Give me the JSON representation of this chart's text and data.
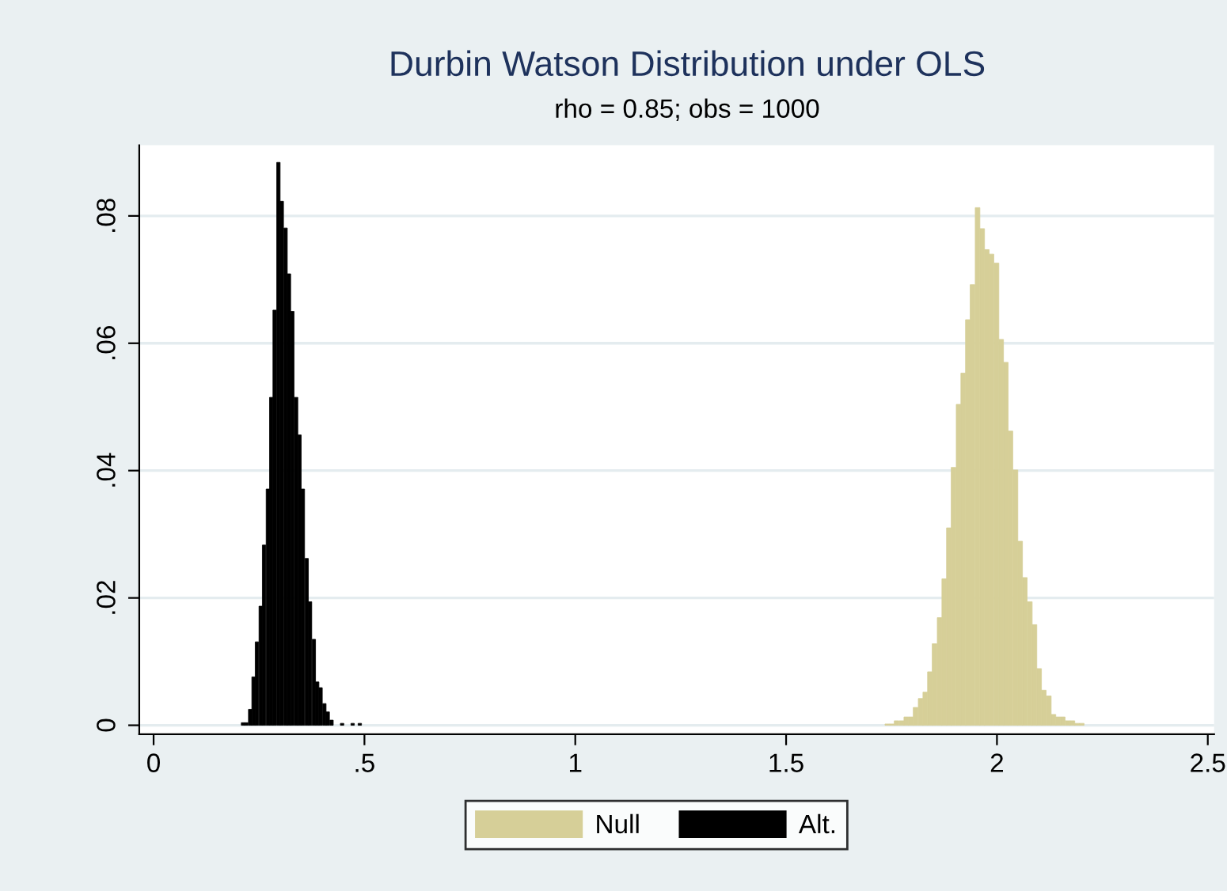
{
  "chart_data": {
    "type": "bar",
    "title": "Durbin Watson Distribution under OLS",
    "subtitle": "rho = 0.85; obs = 1000",
    "xlim": [
      -0.034,
      2.515
    ],
    "ylim": [
      -0.0014,
      0.0911
    ],
    "xticks": [
      0,
      {
        "value": 0.5,
        "label": ".5"
      },
      1,
      1.5,
      2,
      2.5
    ],
    "yticks": [
      0,
      {
        "value": 0.02,
        "label": ".02"
      },
      {
        "value": 0.04,
        "label": ".04"
      },
      {
        "value": 0.06,
        "label": ".06"
      },
      {
        "value": 0.08,
        "label": ".08"
      }
    ],
    "grid": "y",
    "legend": "bottom",
    "series": [
      {
        "name": "Null",
        "color": "#d6cf98",
        "x": [
          1.74,
          1.751,
          1.762,
          1.774,
          1.785,
          1.796,
          1.807,
          1.819,
          1.83,
          1.841,
          1.852,
          1.864,
          1.875,
          1.886,
          1.897,
          1.909,
          1.92,
          1.931,
          1.942,
          1.954,
          1.965,
          1.976,
          1.987,
          1.999,
          2.01,
          2.021,
          2.032,
          2.044,
          2.055,
          2.066,
          2.078,
          2.089,
          2.1,
          2.111,
          2.123,
          2.134,
          2.145,
          2.156,
          2.168,
          2.179,
          2.19,
          2.201
        ],
        "values": [
          0.0002,
          0.0002,
          0.0007,
          0.0007,
          0.0013,
          0.0013,
          0.0028,
          0.0042,
          0.0052,
          0.0084,
          0.0128,
          0.0169,
          0.023,
          0.031,
          0.0405,
          0.0504,
          0.0553,
          0.0637,
          0.0692,
          0.0813,
          0.078,
          0.0747,
          0.074,
          0.0726,
          0.0606,
          0.057,
          0.0462,
          0.0401,
          0.0289,
          0.0232,
          0.0194,
          0.0158,
          0.0089,
          0.0055,
          0.0046,
          0.0017,
          0.0013,
          0.0013,
          0.0007,
          0.0007,
          0.0003,
          0.0003
        ]
      },
      {
        "name": "Alt.",
        "color": "#000000",
        "x": [
          0.212,
          0.22,
          0.229,
          0.237,
          0.245,
          0.254,
          0.262,
          0.271,
          0.279,
          0.287,
          0.296,
          0.304,
          0.313,
          0.321,
          0.329,
          0.338,
          0.346,
          0.354,
          0.363,
          0.371,
          0.38,
          0.388,
          0.396,
          0.405,
          0.413,
          0.422,
          0.447,
          0.472,
          0.489
        ],
        "values": [
          0.0004,
          0.0004,
          0.0025,
          0.0076,
          0.0131,
          0.0187,
          0.0283,
          0.0371,
          0.0515,
          0.0652,
          0.0884,
          0.0823,
          0.0781,
          0.0709,
          0.065,
          0.0515,
          0.0456,
          0.0371,
          0.0262,
          0.0194,
          0.0135,
          0.0068,
          0.0059,
          0.0034,
          0.0021,
          0.0008,
          0.0003,
          0.0003,
          0.0003
        ]
      }
    ]
  }
}
